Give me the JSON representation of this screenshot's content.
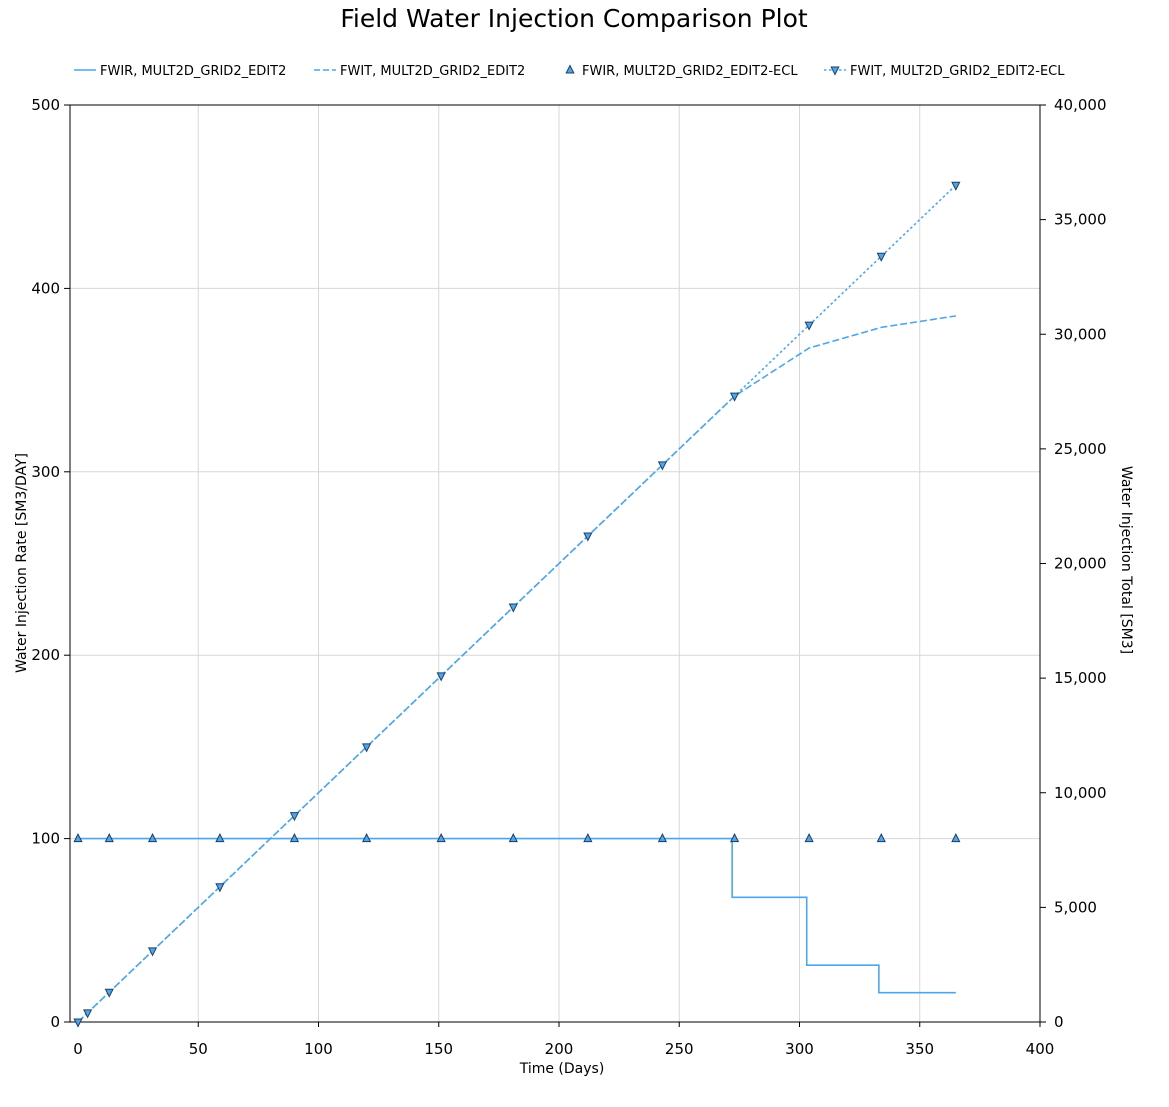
{
  "chart_data": {
    "type": "line",
    "title": "Field Water Injection Comparison Plot",
    "xlabel": "Time (Days)",
    "ylabel_left": "Water Injection Rate [SM3/DAY]",
    "ylabel_right": "Water Injection Total [SM3]",
    "xlim": [
      0,
      400
    ],
    "ylim_left": [
      0,
      500
    ],
    "ylim_right": [
      0,
      40000
    ],
    "x_ticks": [
      "0",
      "50",
      "100",
      "150",
      "200",
      "250",
      "300",
      "350",
      "400"
    ],
    "y_left_ticks": [
      "0",
      "100",
      "200",
      "300",
      "400",
      "500"
    ],
    "y_right_ticks": [
      "0",
      "5,000",
      "10,000",
      "15,000",
      "20,000",
      "25,000",
      "30,000",
      "35,000",
      "40,000"
    ],
    "grid": true,
    "legend_position": "top",
    "colors": {
      "series": "#4da6ec",
      "marker_edge": "#1f3f63"
    },
    "series": [
      {
        "name": "FWIR, MULT2D_GRID2_EDIT2",
        "axis": "left",
        "style": "solid",
        "step": true,
        "x": [
          0,
          272,
          303,
          333,
          365
        ],
        "y": [
          100,
          68,
          31,
          16,
          16
        ]
      },
      {
        "name": "FWIT, MULT2D_GRID2_EDIT2",
        "axis": "right",
        "style": "dashed",
        "x": [
          0,
          4,
          13,
          31,
          59,
          90,
          120,
          151,
          181,
          212,
          243,
          273,
          304,
          334,
          365
        ],
        "y": [
          0,
          400,
          1300,
          3100,
          5900,
          9000,
          12000,
          15100,
          18100,
          21200,
          24300,
          27300,
          29400,
          30300,
          30800
        ]
      },
      {
        "name": "FWIR, MULT2D_GRID2_EDIT2-ECL",
        "axis": "left",
        "style": "markers",
        "marker": "triangle-up",
        "x": [
          0,
          13,
          31,
          59,
          90,
          120,
          151,
          181,
          212,
          243,
          273,
          304,
          334,
          365
        ],
        "y": [
          100,
          100,
          100,
          100,
          100,
          100,
          100,
          100,
          100,
          100,
          100,
          100,
          100,
          100
        ]
      },
      {
        "name": "FWIT, MULT2D_GRID2_EDIT2-ECL",
        "axis": "right",
        "style": "dotted",
        "marker": "triangle-down",
        "x": [
          0,
          4,
          13,
          31,
          59,
          90,
          120,
          151,
          181,
          212,
          243,
          273,
          304,
          334,
          365
        ],
        "y": [
          0,
          400,
          1300,
          3100,
          5900,
          9000,
          12000,
          15100,
          18100,
          21200,
          24300,
          27300,
          30400,
          33400,
          36500
        ]
      }
    ]
  }
}
